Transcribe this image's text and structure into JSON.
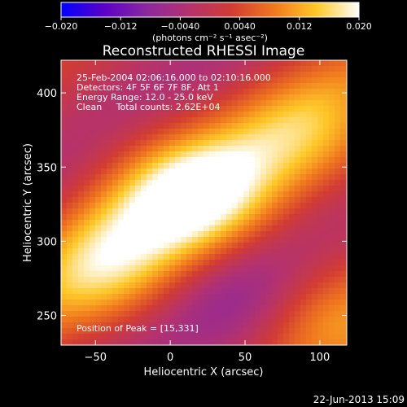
{
  "chart_data": {
    "type": "heatmap",
    "title": "Reconstructed RHESSI Image",
    "xlabel": "Heliocentric X (arcsec)",
    "ylabel": "Heliocentric Y (arcsec)",
    "xlim": [
      -73,
      118
    ],
    "ylim": [
      230,
      422
    ],
    "xticks": [
      -50,
      0,
      50,
      100
    ],
    "xtick_labels": [
      "−50",
      "0",
      "50",
      "100"
    ],
    "yticks": [
      250,
      300,
      350,
      400
    ],
    "ytick_labels": [
      "250",
      "300",
      "350",
      "400"
    ],
    "colorbar": {
      "vmin": -0.02,
      "vmax": 0.02,
      "ticks": [
        -0.02,
        -0.012,
        -0.004,
        0.004,
        0.012,
        0.02
      ],
      "tick_labels": [
        "−0.020",
        "−0.012",
        "−0.0040",
        "0.0040",
        "0.012",
        "0.020"
      ],
      "label": "(photons cm⁻² s⁻¹ asec⁻²)",
      "colors": [
        "#0000ff",
        "#5a00c8",
        "#8c28a0",
        "#b4326e",
        "#d23c32",
        "#f0781e",
        "#ffc828",
        "#ffffff"
      ]
    },
    "annotations": [
      "25-Feb-2004 02:06:16.000 to 02:10:16.000",
      "Detectors: 4F 5F 6F 7F 8F, Att 1",
      "Energy Range: 12.0 - 25.0 keV",
      "Clean     Total counts: 2.62E+04"
    ],
    "peak_label": "Position of Peak = [15,331]",
    "peak": [
      15,
      331
    ],
    "components": [
      {
        "x": 15,
        "y": 331,
        "amplitude": 0.02
      },
      {
        "x": -45,
        "y": 285,
        "amplitude": 0.012
      },
      {
        "x": 95,
        "y": 370,
        "amplitude": 0.01
      },
      {
        "x": 60,
        "y": 260,
        "amplitude": -0.008
      },
      {
        "x": 100,
        "y": 250,
        "amplitude": 0.011
      }
    ]
  },
  "timestamp": "22-Jun-2013 15:09"
}
